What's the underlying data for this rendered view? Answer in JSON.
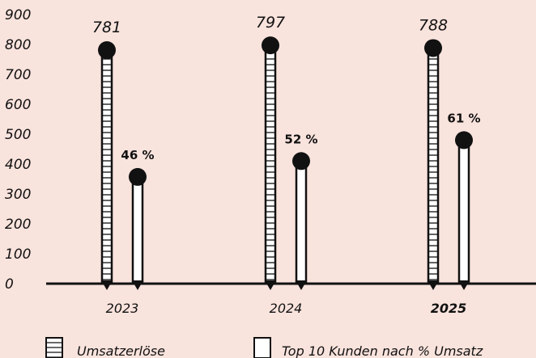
{
  "chart_data": {
    "type": "bar",
    "categories": [
      "2023",
      "2024",
      "2025"
    ],
    "category_bold": [
      false,
      false,
      true
    ],
    "yticks": [
      "0",
      "100",
      "200",
      "300",
      "400",
      "500",
      "600",
      "700",
      "800",
      "900"
    ],
    "ylim": [
      0,
      900
    ],
    "series": [
      {
        "name": "Umsatzerlöse",
        "values": [
          781,
          797,
          788
        ],
        "labels": [
          "781",
          "797",
          "788"
        ],
        "pattern": "ladder"
      },
      {
        "name": "Top 10 Kunden nach % Umsatz",
        "values": [
          357,
          410,
          480
        ],
        "labels": [
          "46 %",
          "52 %",
          "61 %"
        ],
        "pattern": "outline"
      }
    ],
    "legend_position": "bottom",
    "colors": {
      "background": "#f9e3dd",
      "ink": "#111111",
      "bar_fill": "#ffffff"
    }
  }
}
